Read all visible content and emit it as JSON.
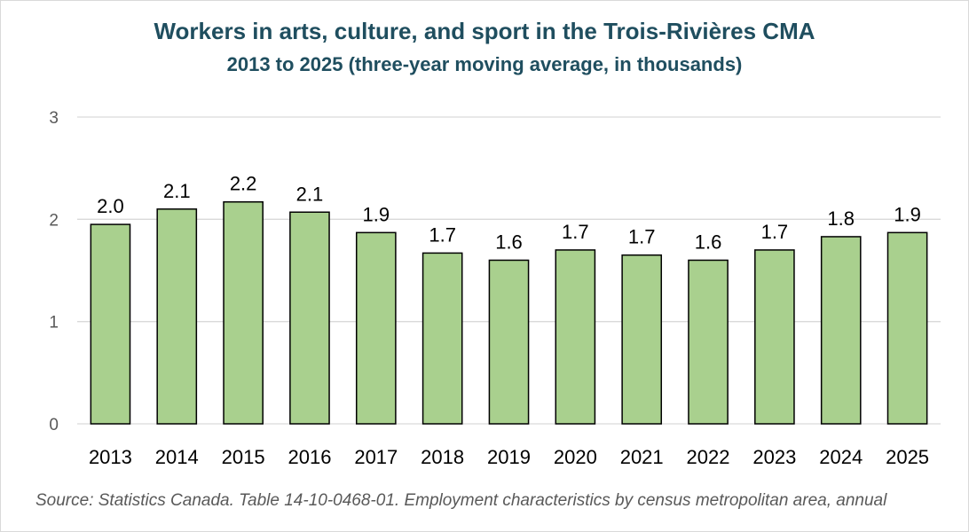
{
  "chart_data": {
    "type": "bar",
    "title": "Workers in arts, culture, and sport in the Trois-Rivières CMA",
    "subtitle": "2013 to 2025 (three-year moving average, in thousands)",
    "categories": [
      "2013",
      "2014",
      "2015",
      "2016",
      "2017",
      "2018",
      "2019",
      "2020",
      "2021",
      "2022",
      "2023",
      "2024",
      "2025"
    ],
    "values": [
      1.95,
      2.1,
      2.17,
      2.07,
      1.87,
      1.67,
      1.6,
      1.7,
      1.65,
      1.6,
      1.7,
      1.83,
      1.87
    ],
    "data_labels": [
      "2.0",
      "2.1",
      "2.2",
      "2.1",
      "1.9",
      "1.7",
      "1.6",
      "1.7",
      "1.7",
      "1.6",
      "1.7",
      "1.8",
      "1.9"
    ],
    "ylim": [
      0,
      3
    ],
    "yticks": [
      "0",
      "1",
      "2",
      "3"
    ],
    "grid": true,
    "bar_color": "#a9d08e",
    "bar_edge_color": "#000000",
    "title_color": "#1f4e5f"
  },
  "source": "Source: Statistics Canada. Table 14-10-0468-01. Employment characteristics by census metropolitan area, annual"
}
